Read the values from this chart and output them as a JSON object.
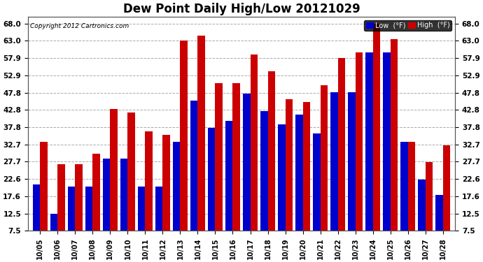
{
  "title": "Dew Point Daily High/Low 20121029",
  "copyright": "Copyright 2012 Cartronics.com",
  "dates": [
    "10/05",
    "10/06",
    "10/07",
    "10/08",
    "10/09",
    "10/10",
    "10/11",
    "10/12",
    "10/13",
    "10/14",
    "10/15",
    "10/16",
    "10/17",
    "10/18",
    "10/19",
    "10/20",
    "10/21",
    "10/22",
    "10/23",
    "10/24",
    "10/25",
    "10/26",
    "10/27",
    "10/28"
  ],
  "low_values": [
    21.0,
    12.5,
    20.5,
    20.5,
    28.5,
    28.5,
    20.5,
    20.5,
    33.5,
    45.5,
    37.5,
    39.5,
    47.5,
    42.5,
    38.5,
    41.5,
    36.0,
    48.0,
    48.0,
    59.5,
    59.5,
    33.5,
    22.5,
    18.0
  ],
  "high_values": [
    33.5,
    27.0,
    27.0,
    30.0,
    43.0,
    42.0,
    36.5,
    35.5,
    63.0,
    64.5,
    50.5,
    50.5,
    59.0,
    54.0,
    46.0,
    45.0,
    50.0,
    58.0,
    59.5,
    68.0,
    63.5,
    33.5,
    27.5,
    32.5
  ],
  "low_color": "#0000cc",
  "high_color": "#cc0000",
  "bg_color": "#ffffff",
  "grid_color": "#aaaaaa",
  "yticks": [
    7.5,
    12.5,
    17.6,
    22.6,
    27.7,
    32.7,
    37.8,
    42.8,
    47.8,
    52.9,
    57.9,
    63.0,
    68.0
  ],
  "ymin": 7.5,
  "ymax": 70.0,
  "title_fontsize": 12,
  "legend_low_label": "Low  (°F)",
  "legend_high_label": "High  (°F)"
}
